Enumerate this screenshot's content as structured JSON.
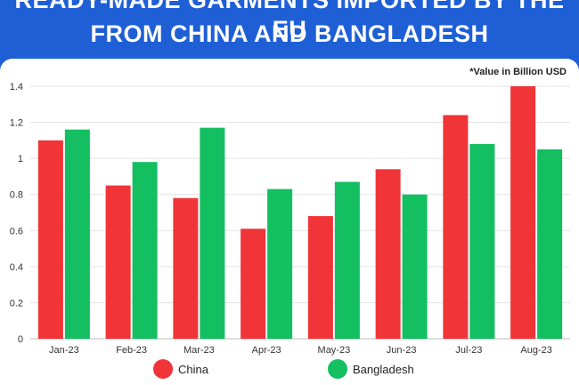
{
  "header": {
    "title_line1": "READY-MADE GARMENTS IMPORTED BY THE EU",
    "title_line2": "FROM CHINA AND BANGLADESH"
  },
  "note": "*Value in Billion USD",
  "colors": {
    "china": "#f03438",
    "bangladesh": "#13bf61",
    "header_bg": "#1f5fd6"
  },
  "chart_data": {
    "type": "bar",
    "categories": [
      "Jan-23",
      "Feb-23",
      "Mar-23",
      "Apr-23",
      "May-23",
      "Jun-23",
      "Jul-23",
      "Aug-23"
    ],
    "series": [
      {
        "name": "China",
        "values": [
          1.1,
          0.85,
          0.78,
          0.61,
          0.68,
          0.94,
          1.24,
          1.4
        ]
      },
      {
        "name": "Bangladesh",
        "values": [
          1.16,
          0.98,
          1.17,
          0.83,
          0.87,
          0.8,
          1.08,
          1.05
        ]
      }
    ],
    "yticks": [
      "0",
      "0.2",
      "0.4",
      "0.6",
      "0.8",
      "1",
      "1.2",
      "1.4"
    ],
    "ylim": [
      0,
      1.4
    ],
    "grid": true,
    "legend": "bottom"
  }
}
